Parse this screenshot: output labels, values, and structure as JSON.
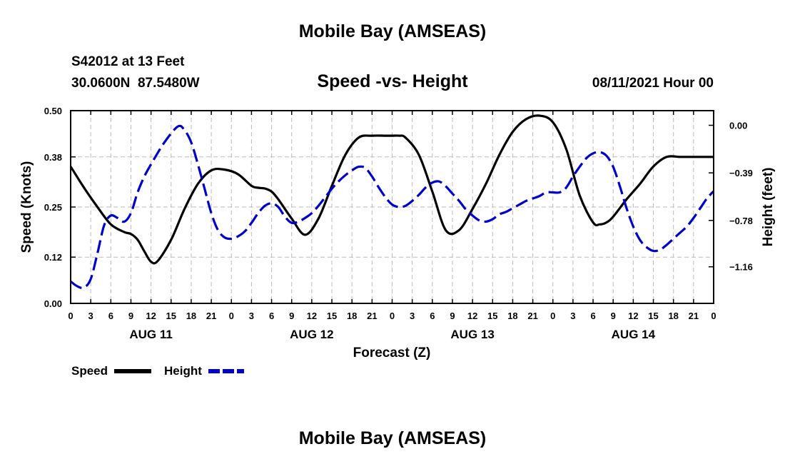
{
  "page": {
    "top_title": "Mobile Bay (AMSEAS)",
    "bottom_title": "Mobile Bay (AMSEAS)",
    "station": "S42012 at 13 Feet",
    "coords": "30.0600N  87.5480W",
    "datetime": "08/11/2021 Hour 00"
  },
  "chart_data": {
    "type": "line",
    "title": "Speed -vs- Height",
    "xlabel": "Forecast (Z)",
    "ylabel": "Speed (Knots)",
    "ylabel_right": "Height (feet)",
    "xlim": [
      0,
      96
    ],
    "ylim": [
      0,
      0.5
    ],
    "ylim_right": [
      -1.46,
      0.12
    ],
    "grid": true,
    "legend_position": "bottom-left",
    "x_ticks": [
      0,
      3,
      6,
      9,
      12,
      15,
      18,
      21,
      24,
      27,
      30,
      33,
      36,
      39,
      42,
      45,
      48,
      51,
      54,
      57,
      60,
      63,
      66,
      69,
      72,
      75,
      78,
      81,
      84,
      87,
      90,
      93,
      96
    ],
    "x_tick_labels": [
      "0",
      "3",
      "6",
      "9",
      "12",
      "15",
      "18",
      "21",
      "0",
      "3",
      "6",
      "9",
      "12",
      "15",
      "18",
      "21",
      "0",
      "3",
      "6",
      "9",
      "12",
      "15",
      "18",
      "21",
      "0",
      "3",
      "6",
      "9",
      "12",
      "15",
      "18",
      "21",
      "0"
    ],
    "day_labels": [
      {
        "x": 12,
        "label": "AUG 11"
      },
      {
        "x": 36,
        "label": "AUG 12"
      },
      {
        "x": 60,
        "label": "AUG 13"
      },
      {
        "x": 84,
        "label": "AUG 14"
      }
    ],
    "y_ticks_left": [
      0.0,
      0.12,
      0.25,
      0.38,
      0.5
    ],
    "y_tick_labels_left": [
      "0.00",
      "0.12",
      "0.25",
      "0.38",
      "0.50"
    ],
    "y_ticks_right": [
      0.0,
      -0.39,
      -0.78,
      -1.16
    ],
    "y_tick_labels_right": [
      "0.00",
      "−0.39",
      "−0.78",
      "−1.16"
    ],
    "series": [
      {
        "name": "Speed",
        "axis": "left",
        "color": "#000000",
        "dash": "solid",
        "x": [
          0,
          2,
          4,
          6,
          8,
          9,
          10,
          11,
          12,
          13,
          15,
          17,
          19,
          21,
          23,
          25,
          27,
          28,
          29,
          30,
          31,
          33,
          35,
          37,
          39,
          41,
          43,
          45,
          47,
          48,
          49,
          50,
          52,
          54,
          56,
          58,
          60,
          62,
          64,
          66,
          68,
          70,
          72,
          74,
          76,
          78,
          79,
          80,
          81,
          83,
          85,
          87,
          89,
          91,
          93,
          95,
          96
        ],
        "y": [
          0.355,
          0.3,
          0.25,
          0.205,
          0.185,
          0.18,
          0.165,
          0.135,
          0.108,
          0.11,
          0.165,
          0.245,
          0.31,
          0.345,
          0.347,
          0.335,
          0.305,
          0.3,
          0.298,
          0.29,
          0.27,
          0.22,
          0.178,
          0.22,
          0.305,
          0.385,
          0.43,
          0.435,
          0.435,
          0.435,
          0.435,
          0.43,
          0.385,
          0.29,
          0.19,
          0.19,
          0.245,
          0.31,
          0.385,
          0.445,
          0.478,
          0.487,
          0.47,
          0.4,
          0.28,
          0.21,
          0.205,
          0.21,
          0.225,
          0.27,
          0.31,
          0.355,
          0.38,
          0.38,
          0.38,
          0.38,
          0.38
        ]
      },
      {
        "name": "Height",
        "axis": "right",
        "color": "#0000cc",
        "dash": "dashed",
        "x": [
          0,
          1,
          2,
          3,
          4,
          5,
          6,
          7,
          8,
          9,
          10,
          11,
          12,
          14,
          16,
          17,
          18,
          19,
          20,
          21,
          22,
          23,
          24,
          25,
          26,
          27,
          28,
          29,
          30,
          31,
          32,
          33,
          34,
          35,
          36,
          37,
          38,
          39,
          40,
          41,
          42,
          43,
          44,
          45,
          46,
          47,
          48,
          49,
          50,
          51,
          52,
          53,
          54,
          55,
          56,
          57,
          58,
          59,
          60,
          61,
          62,
          63,
          64,
          65,
          66,
          67,
          68,
          69,
          70,
          71,
          72,
          73,
          74,
          75,
          76,
          77,
          78,
          79,
          80,
          81,
          82,
          83,
          84,
          85,
          86,
          87,
          88,
          89,
          90,
          91,
          92,
          93,
          94,
          95,
          96
        ],
        "y": [
          -1.28,
          -1.32,
          -1.33,
          -1.26,
          -1.05,
          -0.82,
          -0.74,
          -0.76,
          -0.79,
          -0.72,
          -0.55,
          -0.42,
          -0.32,
          -0.14,
          -0.01,
          -0.04,
          -0.14,
          -0.32,
          -0.52,
          -0.72,
          -0.86,
          -0.92,
          -0.93,
          -0.91,
          -0.87,
          -0.8,
          -0.72,
          -0.66,
          -0.64,
          -0.67,
          -0.75,
          -0.8,
          -0.79,
          -0.76,
          -0.72,
          -0.66,
          -0.59,
          -0.52,
          -0.46,
          -0.41,
          -0.37,
          -0.34,
          -0.35,
          -0.42,
          -0.51,
          -0.59,
          -0.65,
          -0.67,
          -0.66,
          -0.62,
          -0.57,
          -0.51,
          -0.47,
          -0.46,
          -0.5,
          -0.56,
          -0.62,
          -0.69,
          -0.74,
          -0.78,
          -0.79,
          -0.77,
          -0.73,
          -0.71,
          -0.68,
          -0.65,
          -0.62,
          -0.6,
          -0.58,
          -0.55,
          -0.55,
          -0.55,
          -0.51,
          -0.42,
          -0.34,
          -0.27,
          -0.23,
          -0.22,
          -0.25,
          -0.34,
          -0.5,
          -0.68,
          -0.83,
          -0.94,
          -1.0,
          -1.03,
          -1.02,
          -0.98,
          -0.93,
          -0.88,
          -0.83,
          -0.76,
          -0.68,
          -0.6,
          -0.54
        ]
      }
    ]
  }
}
